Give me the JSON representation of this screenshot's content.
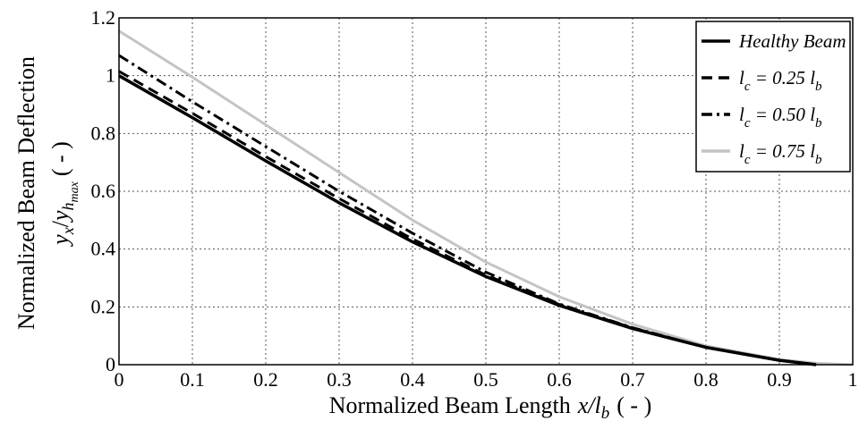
{
  "chart_data": {
    "type": "line",
    "xlabel": "Normalized Beam Length",
    "xlabel_math": {
      "var": "x/l",
      "sub": "b",
      "unit": "( - )"
    },
    "ylabel": "Normalized Beam Deflection",
    "ylabel_math": {
      "var": "y",
      "sub_x": "x",
      "sep": "/",
      "var2": "y",
      "sub_h": "h",
      "sub_max": "max",
      "unit": "( - )"
    },
    "xlim": [
      0,
      1
    ],
    "ylim": [
      0,
      1.2
    ],
    "x_ticks": [
      "0",
      "0.1",
      "0.2",
      "0.3",
      "0.4",
      "0.5",
      "0.6",
      "0.7",
      "0.8",
      "0.9",
      "1"
    ],
    "y_ticks": [
      "0",
      "0.2",
      "0.4",
      "0.6",
      "0.8",
      "1",
      "1.2"
    ],
    "grid": true,
    "legend_position": "top-right",
    "series": [
      {
        "name": "Healthy Beam",
        "legend": {
          "main": "Healthy Beam"
        },
        "color": "#000000",
        "style": "solid",
        "x": [
          0,
          0.1,
          0.2,
          0.3,
          0.4,
          0.5,
          0.6,
          0.7,
          0.8,
          0.9,
          0.95
        ],
        "y": [
          1.0,
          0.855,
          0.705,
          0.56,
          0.425,
          0.305,
          0.205,
          0.125,
          0.06,
          0.015,
          0.0
        ]
      },
      {
        "name": "l_c = 0.25 l_b",
        "legend": {
          "a": "l",
          "a_sub": "c",
          "mid": " = 0.25 ",
          "b": "l",
          "b_sub": "b"
        },
        "color": "#000000",
        "style": "dashed",
        "x": [
          0,
          0.1,
          0.2,
          0.3,
          0.4,
          0.5,
          0.6,
          0.7,
          0.8,
          0.9,
          0.95
        ],
        "y": [
          1.015,
          0.87,
          0.72,
          0.575,
          0.435,
          0.31,
          0.208,
          0.127,
          0.06,
          0.015,
          0.0
        ]
      },
      {
        "name": "l_c = 0.50 l_b",
        "legend": {
          "a": "l",
          "a_sub": "c",
          "mid": " = 0.50 ",
          "b": "l",
          "b_sub": "b"
        },
        "color": "#000000",
        "style": "dashdot",
        "x": [
          0,
          0.1,
          0.2,
          0.3,
          0.4,
          0.5,
          0.6,
          0.7,
          0.8,
          0.9,
          0.95
        ],
        "y": [
          1.07,
          0.91,
          0.755,
          0.6,
          0.455,
          0.32,
          0.21,
          0.128,
          0.06,
          0.015,
          0.0
        ]
      },
      {
        "name": "l_c = 0.75 l_b",
        "legend": {
          "a": "l",
          "a_sub": "c",
          "mid": " = 0.75 ",
          "b": "l",
          "b_sub": "b"
        },
        "color": "#c4c4c4",
        "style": "solid",
        "x": [
          0,
          0.1,
          0.2,
          0.3,
          0.4,
          0.5,
          0.6,
          0.7,
          0.8,
          0.9,
          0.95,
          1.0
        ],
        "y": [
          1.155,
          0.995,
          0.83,
          0.665,
          0.5,
          0.355,
          0.235,
          0.14,
          0.065,
          0.018,
          0.005,
          0.0
        ]
      }
    ]
  }
}
